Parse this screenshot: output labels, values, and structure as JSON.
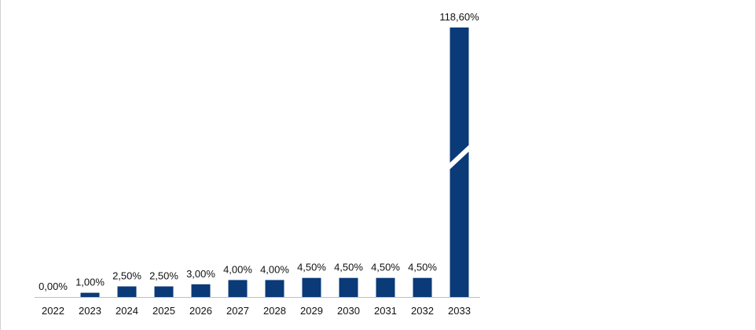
{
  "chart_data": {
    "type": "bar",
    "title": "",
    "xlabel": "",
    "ylabel": "",
    "categories": [
      "2022",
      "2023",
      "2024",
      "2025",
      "2026",
      "2027",
      "2028",
      "2029",
      "2030",
      "2031",
      "2032",
      "2033"
    ],
    "values": [
      0.0,
      1.0,
      2.5,
      2.5,
      3.0,
      4.0,
      4.0,
      4.5,
      4.5,
      4.5,
      4.5,
      118.6
    ],
    "data_labels": [
      "0,00%",
      "1,00%",
      "2,50%",
      "2,50%",
      "3,00%",
      "4,00%",
      "4,00%",
      "4,50%",
      "4,50%",
      "4,50%",
      "4,50%",
      "118,60%"
    ],
    "value_unit": "%",
    "axis_break": true,
    "grid": false,
    "legend": "none",
    "bar_color": "#0a3a78",
    "axis_color": "#bfbfbf"
  }
}
